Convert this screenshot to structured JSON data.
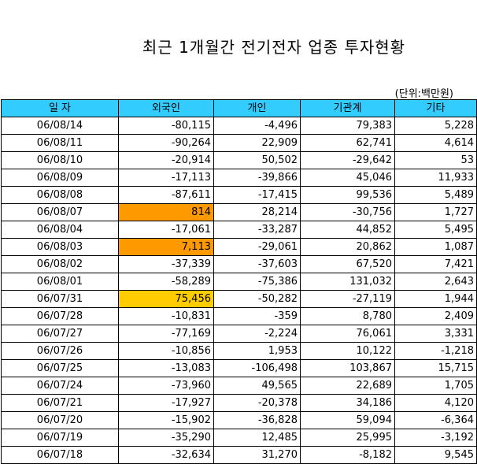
{
  "title": "최근 1개월간 전기전자 업종 투자현황",
  "unit": "(단위:백만원)",
  "columns": [
    "일 자",
    "외국인",
    "개인",
    "기관계",
    "기타"
  ],
  "colors": {
    "header_bg": "#33ccff",
    "highlight_orange": "#ff9900",
    "highlight_yellow": "#ffcc00"
  },
  "rows": [
    {
      "date": "06/08/14",
      "foreign": "-80,115",
      "individual": "-4,496",
      "institution": "79,383",
      "other": "5,228",
      "highlight": ""
    },
    {
      "date": "06/08/11",
      "foreign": "-90,264",
      "individual": "22,909",
      "institution": "62,741",
      "other": "4,614",
      "highlight": ""
    },
    {
      "date": "06/08/10",
      "foreign": "-20,914",
      "individual": "50,502",
      "institution": "-29,642",
      "other": "53",
      "highlight": ""
    },
    {
      "date": "06/08/09",
      "foreign": "-17,113",
      "individual": "-39,866",
      "institution": "45,046",
      "other": "11,933",
      "highlight": ""
    },
    {
      "date": "06/08/08",
      "foreign": "-87,611",
      "individual": "-17,415",
      "institution": "99,536",
      "other": "5,489",
      "highlight": ""
    },
    {
      "date": "06/08/07",
      "foreign": "814",
      "individual": "28,214",
      "institution": "-30,756",
      "other": "1,727",
      "highlight": "orange"
    },
    {
      "date": "06/08/04",
      "foreign": "-17,061",
      "individual": "-33,287",
      "institution": "44,852",
      "other": "5,495",
      "highlight": ""
    },
    {
      "date": "06/08/03",
      "foreign": "7,113",
      "individual": "-29,061",
      "institution": "20,862",
      "other": "1,087",
      "highlight": "orange"
    },
    {
      "date": "06/08/02",
      "foreign": "-37,339",
      "individual": "-37,603",
      "institution": "67,520",
      "other": "7,421",
      "highlight": ""
    },
    {
      "date": "06/08/01",
      "foreign": "-58,289",
      "individual": "-75,386",
      "institution": "131,032",
      "other": "2,643",
      "highlight": ""
    },
    {
      "date": "06/07/31",
      "foreign": "75,456",
      "individual": "-50,282",
      "institution": "-27,119",
      "other": "1,944",
      "highlight": "yellow"
    },
    {
      "date": "06/07/28",
      "foreign": "-10,831",
      "individual": "-359",
      "institution": "8,780",
      "other": "2,409",
      "highlight": ""
    },
    {
      "date": "06/07/27",
      "foreign": "-77,169",
      "individual": "-2,224",
      "institution": "76,061",
      "other": "3,331",
      "highlight": ""
    },
    {
      "date": "06/07/26",
      "foreign": "-10,856",
      "individual": "1,953",
      "institution": "10,122",
      "other": "-1,218",
      "highlight": ""
    },
    {
      "date": "06/07/25",
      "foreign": "-13,083",
      "individual": "-106,498",
      "institution": "103,867",
      "other": "15,715",
      "highlight": ""
    },
    {
      "date": "06/07/24",
      "foreign": "-73,960",
      "individual": "49,565",
      "institution": "22,689",
      "other": "1,705",
      "highlight": ""
    },
    {
      "date": "06/07/21",
      "foreign": "-17,927",
      "individual": "-20,378",
      "institution": "34,186",
      "other": "4,120",
      "highlight": ""
    },
    {
      "date": "06/07/20",
      "foreign": "-15,902",
      "individual": "-36,828",
      "institution": "59,094",
      "other": "-6,364",
      "highlight": ""
    },
    {
      "date": "06/07/19",
      "foreign": "-35,290",
      "individual": "12,485",
      "institution": "25,995",
      "other": "-3,192",
      "highlight": ""
    },
    {
      "date": "06/07/18",
      "foreign": "-32,634",
      "individual": "31,270",
      "institution": "-8,182",
      "other": "9,545",
      "highlight": ""
    }
  ]
}
